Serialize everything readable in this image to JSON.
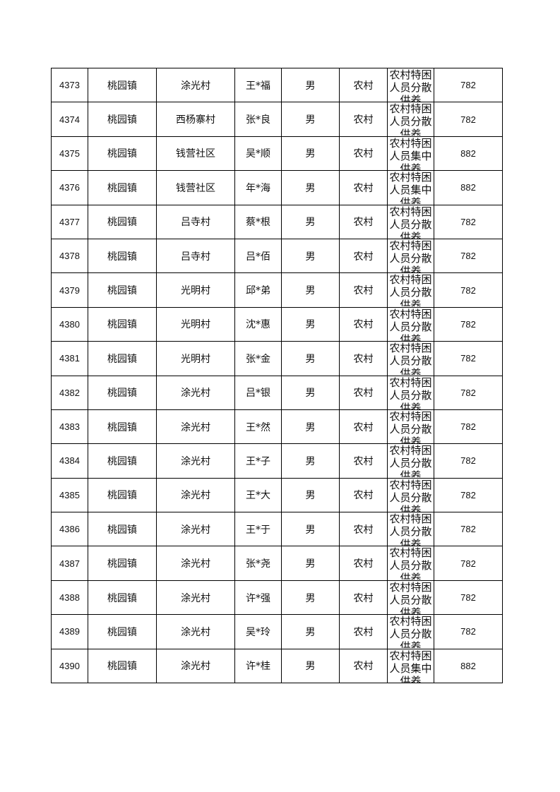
{
  "rows": [
    {
      "id": "4373",
      "town": "桃园镇",
      "village": "涂光村",
      "name": "王*福",
      "gender": "男",
      "area": "农村",
      "type": "农村特困人员分散供养",
      "amount": "782"
    },
    {
      "id": "4374",
      "town": "桃园镇",
      "village": "西杨寨村",
      "name": "张*良",
      "gender": "男",
      "area": "农村",
      "type": "农村特困人员分散供养",
      "amount": "782"
    },
    {
      "id": "4375",
      "town": "桃园镇",
      "village": "钱营社区",
      "name": "吴*顺",
      "gender": "男",
      "area": "农村",
      "type": "农村特困人员集中供养",
      "amount": "882"
    },
    {
      "id": "4376",
      "town": "桃园镇",
      "village": "钱营社区",
      "name": "年*海",
      "gender": "男",
      "area": "农村",
      "type": "农村特困人员集中供养",
      "amount": "882"
    },
    {
      "id": "4377",
      "town": "桃园镇",
      "village": "吕寺村",
      "name": "蔡*根",
      "gender": "男",
      "area": "农村",
      "type": "农村特困人员分散供养",
      "amount": "782"
    },
    {
      "id": "4378",
      "town": "桃园镇",
      "village": "吕寺村",
      "name": "吕*佰",
      "gender": "男",
      "area": "农村",
      "type": "农村特困人员分散供养",
      "amount": "782"
    },
    {
      "id": "4379",
      "town": "桃园镇",
      "village": "光明村",
      "name": "邱*弟",
      "gender": "男",
      "area": "农村",
      "type": "农村特困人员分散供养",
      "amount": "782"
    },
    {
      "id": "4380",
      "town": "桃园镇",
      "village": "光明村",
      "name": "沈*惠",
      "gender": "男",
      "area": "农村",
      "type": "农村特困人员分散供养",
      "amount": "782"
    },
    {
      "id": "4381",
      "town": "桃园镇",
      "village": "光明村",
      "name": "张*金",
      "gender": "男",
      "area": "农村",
      "type": "农村特困人员分散供养",
      "amount": "782"
    },
    {
      "id": "4382",
      "town": "桃园镇",
      "village": "涂光村",
      "name": "吕*银",
      "gender": "男",
      "area": "农村",
      "type": "农村特困人员分散供养",
      "amount": "782"
    },
    {
      "id": "4383",
      "town": "桃园镇",
      "village": "涂光村",
      "name": "王*然",
      "gender": "男",
      "area": "农村",
      "type": "农村特困人员分散供养",
      "amount": "782"
    },
    {
      "id": "4384",
      "town": "桃园镇",
      "village": "涂光村",
      "name": "王*子",
      "gender": "男",
      "area": "农村",
      "type": "农村特困人员分散供养",
      "amount": "782"
    },
    {
      "id": "4385",
      "town": "桃园镇",
      "village": "涂光村",
      "name": "王*大",
      "gender": "男",
      "area": "农村",
      "type": "农村特困人员分散供养",
      "amount": "782"
    },
    {
      "id": "4386",
      "town": "桃园镇",
      "village": "涂光村",
      "name": "王*于",
      "gender": "男",
      "area": "农村",
      "type": "农村特困人员分散供养",
      "amount": "782"
    },
    {
      "id": "4387",
      "town": "桃园镇",
      "village": "涂光村",
      "name": "张*尧",
      "gender": "男",
      "area": "农村",
      "type": "农村特困人员分散供养",
      "amount": "782"
    },
    {
      "id": "4388",
      "town": "桃园镇",
      "village": "涂光村",
      "name": "许*强",
      "gender": "男",
      "area": "农村",
      "type": "农村特困人员分散供养",
      "amount": "782"
    },
    {
      "id": "4389",
      "town": "桃园镇",
      "village": "涂光村",
      "name": "吴*玲",
      "gender": "男",
      "area": "农村",
      "type": "农村特困人员分散供养",
      "amount": "782"
    },
    {
      "id": "4390",
      "town": "桃园镇",
      "village": "涂光村",
      "name": "许*桂",
      "gender": "男",
      "area": "农村",
      "type": "农村特困人员集中供养",
      "amount": "882"
    }
  ]
}
